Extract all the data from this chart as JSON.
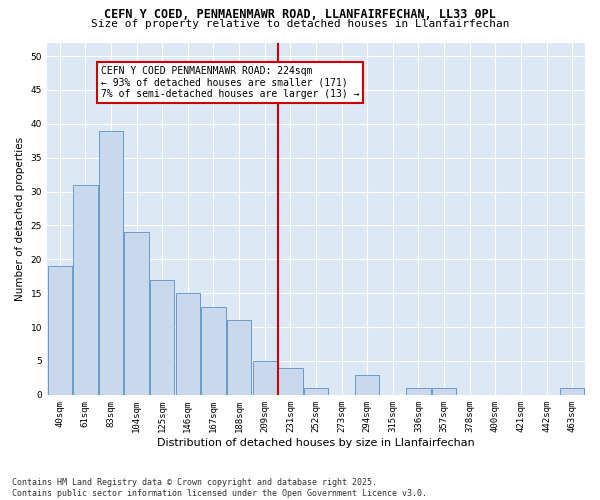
{
  "title": "CEFN Y COED, PENMAENMAWR ROAD, LLANFAIRFECHAN, LL33 0PL",
  "subtitle": "Size of property relative to detached houses in Llanfairfechan",
  "xlabel": "Distribution of detached houses by size in Llanfairfechan",
  "ylabel": "Number of detached properties",
  "categories": [
    "40sqm",
    "61sqm",
    "83sqm",
    "104sqm",
    "125sqm",
    "146sqm",
    "167sqm",
    "188sqm",
    "209sqm",
    "231sqm",
    "252sqm",
    "273sqm",
    "294sqm",
    "315sqm",
    "336sqm",
    "357sqm",
    "378sqm",
    "400sqm",
    "421sqm",
    "442sqm",
    "463sqm"
  ],
  "values": [
    19,
    31,
    39,
    24,
    17,
    15,
    13,
    11,
    5,
    4,
    1,
    0,
    3,
    0,
    1,
    1,
    0,
    0,
    0,
    0,
    1
  ],
  "bar_color": "#c8d9ee",
  "bar_edge_color": "#5a8fc0",
  "vline_color": "#cc0000",
  "annotation_text": "CEFN Y COED PENMAENMAWR ROAD: 224sqm\n← 93% of detached houses are smaller (171)\n7% of semi-detached houses are larger (13) →",
  "annotation_box_edge": "#cc0000",
  "ylim": [
    0,
    52
  ],
  "yticks": [
    0,
    5,
    10,
    15,
    20,
    25,
    30,
    35,
    40,
    45,
    50
  ],
  "plot_bg_color": "#dce9f5",
  "footer": "Contains HM Land Registry data © Crown copyright and database right 2025.\nContains public sector information licensed under the Open Government Licence v3.0.",
  "title_fontsize": 8.5,
  "subtitle_fontsize": 8,
  "xlabel_fontsize": 8,
  "ylabel_fontsize": 7.5,
  "tick_fontsize": 6.5,
  "annotation_fontsize": 7,
  "footer_fontsize": 6
}
